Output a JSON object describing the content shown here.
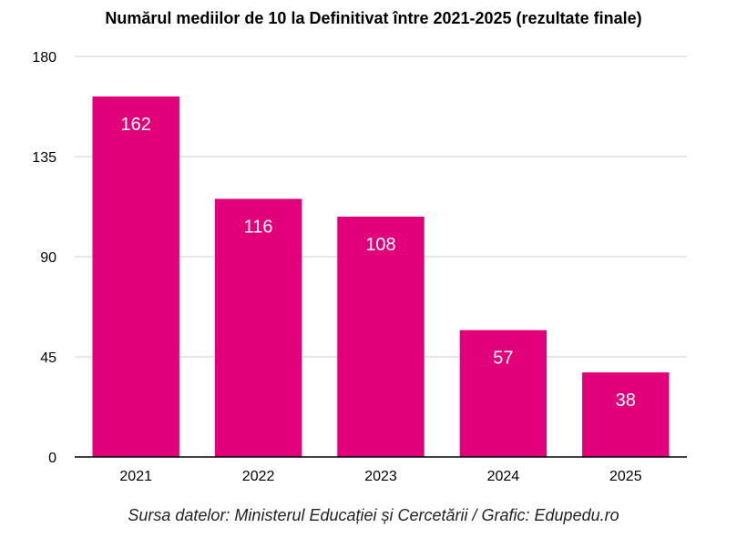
{
  "chart_data": {
    "type": "bar",
    "title": "Numărul mediilor de 10 la Definitivat între 2021-2025 (rezultate finale)",
    "categories": [
      "2021",
      "2022",
      "2023",
      "2024",
      "2025"
    ],
    "values": [
      162,
      116,
      108,
      57,
      38
    ],
    "data_labels": [
      "162",
      "116",
      "108",
      "57",
      "38"
    ],
    "ylim": [
      0,
      180
    ],
    "yticks": [
      0,
      45,
      90,
      135,
      180
    ],
    "ytick_labels": [
      "0",
      "45",
      "90",
      "135",
      "180"
    ],
    "xlabel": "",
    "ylabel": "",
    "grid": true,
    "legend": "none",
    "bar_color": "#E2007A",
    "label_color": "#FFFFFF",
    "grid_color": "#CCCCCC",
    "axis_color": "#000000"
  },
  "source": "Sursa datelor: Ministerul Educației și Cercetării / Grafic: Edupedu.ro"
}
